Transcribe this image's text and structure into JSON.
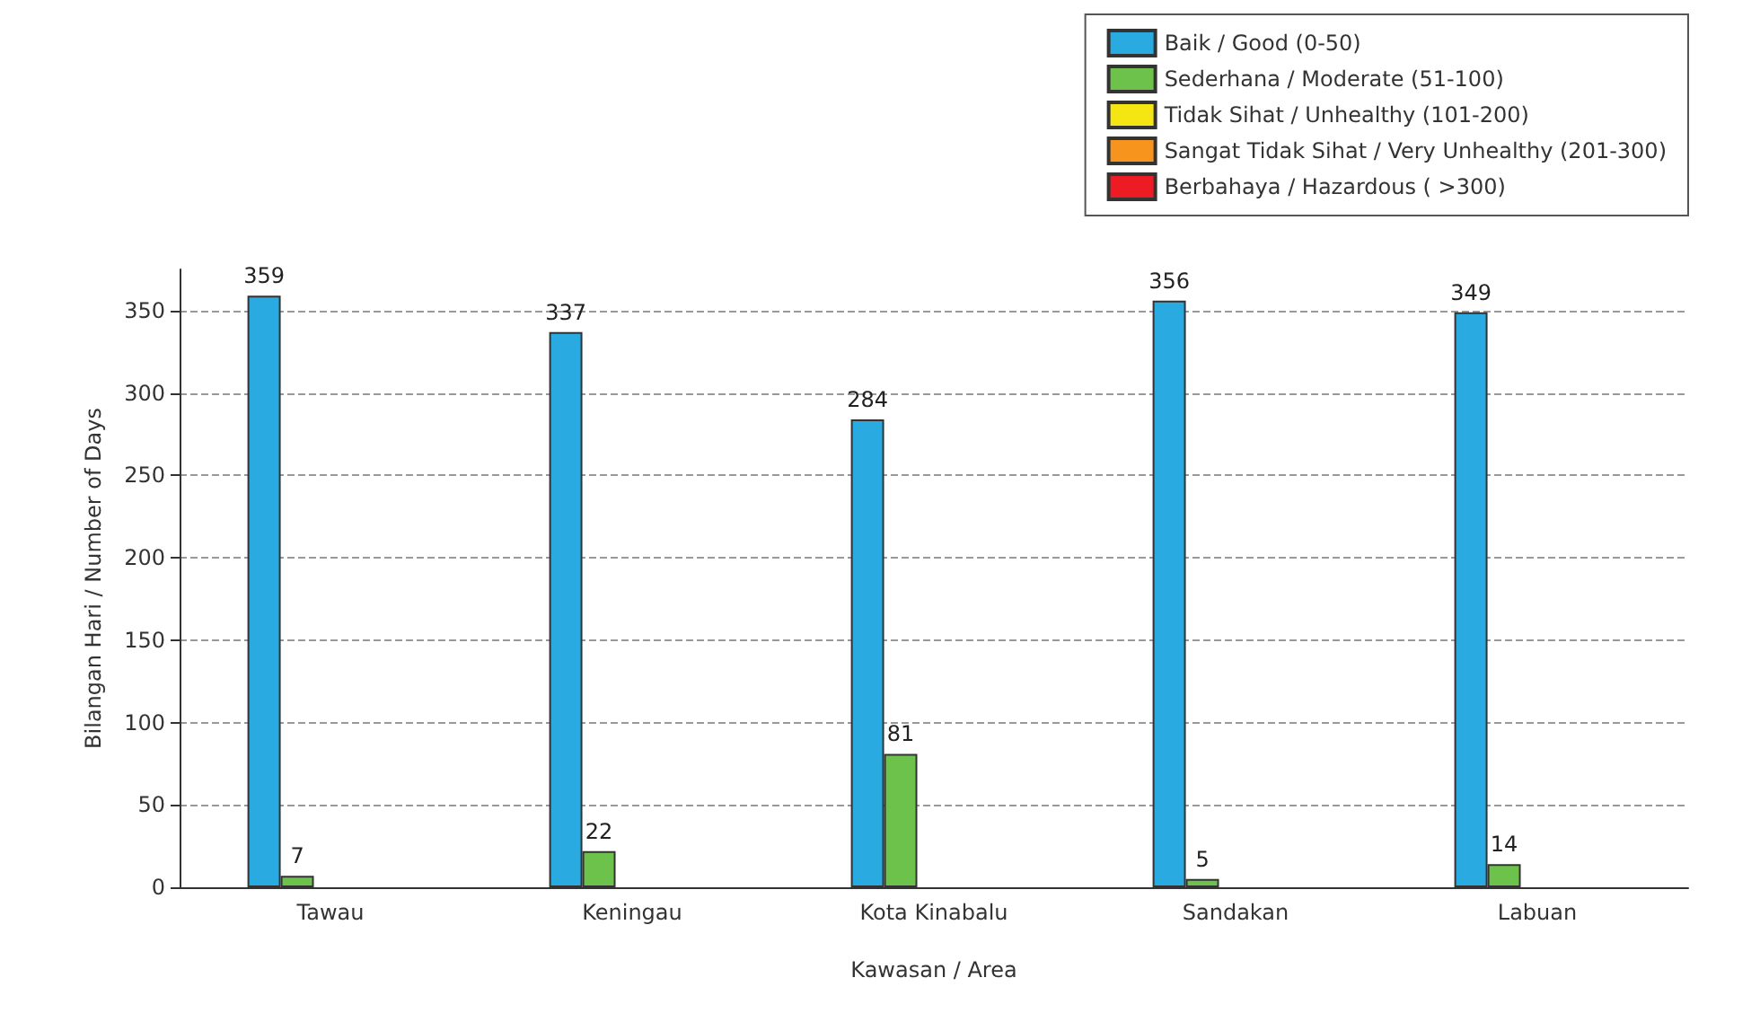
{
  "chart_data": {
    "type": "bar",
    "xlabel": "Kawasan / Area",
    "ylabel": "Bilangan Hari / Number of Days",
    "categories": [
      "Tawau",
      "Keningau",
      "Kota Kinabalu",
      "Sandakan",
      "Labuan"
    ],
    "series": [
      {
        "name": "Baik / Good (0-50)",
        "color": "#29abe2",
        "values": [
          359,
          337,
          284,
          356,
          349
        ]
      },
      {
        "name": "Sederhana / Moderate (51-100)",
        "color": "#6cc24a",
        "values": [
          7,
          22,
          81,
          5,
          14
        ]
      },
      {
        "name": "Tidak Sihat / Unhealthy (101-200)",
        "color": "#f5e613",
        "values": [
          null,
          null,
          null,
          null,
          null
        ]
      },
      {
        "name": "Sangat Tidak Sihat / Very Unhealthy (201-300)",
        "color": "#f7941d",
        "values": [
          null,
          null,
          null,
          null,
          null
        ]
      },
      {
        "name": "Berbahaya / Hazardous ( >300)",
        "color": "#ed1c24",
        "values": [
          null,
          null,
          null,
          null,
          null
        ]
      }
    ],
    "ylim": [
      0,
      375
    ],
    "yticks": [
      0,
      50,
      100,
      150,
      200,
      250,
      300,
      350
    ],
    "grid": "y",
    "legend": "top right",
    "data_labels": true
  }
}
